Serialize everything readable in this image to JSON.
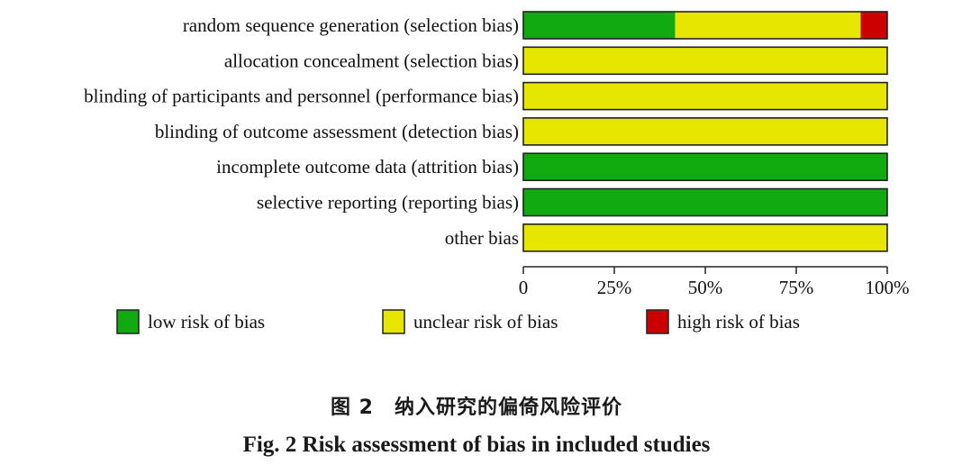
{
  "chart_data": {
    "type": "bar",
    "stacked": true,
    "orientation": "horizontal",
    "categories": [
      "random sequence generation (selection bias)",
      "allocation concealment (selection bias)",
      "blinding of participants and personnel (performance bias)",
      "blinding of outcome assessment (detection bias)",
      "incomplete outcome data (attrition bias)",
      "selective reporting (reporting bias)",
      "other bias"
    ],
    "series": [
      {
        "name": "low risk of bias",
        "color": "#11aa11",
        "values": [
          41.7,
          0,
          0,
          0,
          100,
          100,
          0
        ]
      },
      {
        "name": "unclear risk of bias",
        "color": "#e6e600",
        "values": [
          51.0,
          100,
          100,
          100,
          0,
          0,
          100
        ]
      },
      {
        "name": "high risk of bias",
        "color": "#cc0000",
        "values": [
          7.3,
          0,
          0,
          0,
          0,
          0,
          0
        ]
      }
    ],
    "xticks": [
      "0",
      "25%",
      "50%",
      "75%",
      "100%"
    ],
    "xlim": [
      0,
      100
    ],
    "legend_position": "bottom"
  },
  "caption": {
    "chinese": "图 2　纳入研究的偏倚风险评价",
    "english": "Fig. 2   Risk assessment of bias in included studies"
  }
}
